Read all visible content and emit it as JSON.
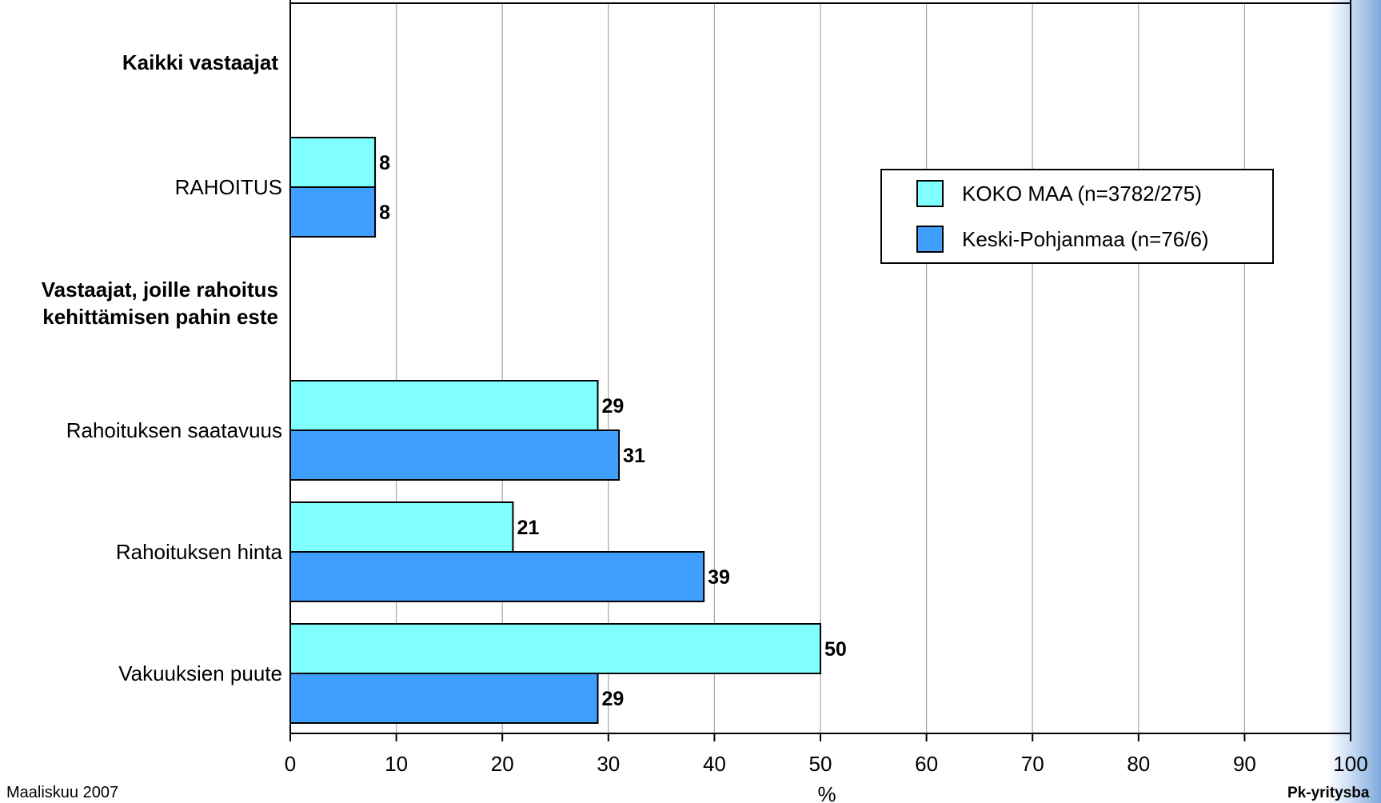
{
  "chart_data": {
    "type": "bar",
    "orientation": "horizontal",
    "sections": [
      {
        "heading": "Kaikki vastaajat",
        "categories": [
          "RAHOITUS"
        ]
      },
      {
        "heading": "Vastaajat, joille rahoitus kehittämisen pahin este",
        "heading_lines": [
          "Vastaajat, joille rahoitus",
          "kehittämisen pahin este"
        ],
        "categories": [
          "Rahoituksen saatavuus",
          "Rahoituksen hinta",
          "Vakuuksien puute"
        ]
      }
    ],
    "categories": [
      "RAHOITUS",
      "Rahoituksen saatavuus",
      "Rahoituksen hinta",
      "Vakuuksien puute"
    ],
    "series": [
      {
        "name": "KOKO MAA (n=3782/275)",
        "color": "#80ffff",
        "values": [
          8,
          29,
          21,
          50
        ]
      },
      {
        "name": "Keski-Pohjanmaa (n=76/6)",
        "color": "#3f9fff",
        "values": [
          8,
          31,
          39,
          29
        ]
      }
    ],
    "xlabel": "%",
    "xlim": [
      0,
      100
    ],
    "xticks": [
      0,
      10,
      20,
      30,
      40,
      50,
      60,
      70,
      80,
      90,
      100
    ],
    "grid": true,
    "legend_position": "upper-right"
  },
  "footer": {
    "left": "Maaliskuu 2007",
    "right": "Pk-yritysba"
  }
}
